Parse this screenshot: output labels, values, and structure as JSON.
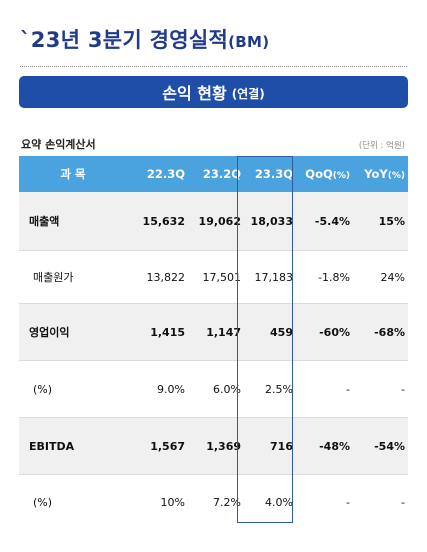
{
  "page": {
    "title": "`23년 3분기 경영실적",
    "title_suffix": "(BM)",
    "banner_title": "손익 현황",
    "banner_suffix": "(연결)",
    "caption": "요약 손익계산서",
    "unit": "(단위 : 억원)"
  },
  "table": {
    "header": {
      "item": "과 목",
      "c1": "22.3Q",
      "c2": "23.2Q",
      "c3": "23.3Q",
      "c4": "QoQ",
      "c4_unit": "(%)",
      "c5": "YoY",
      "c5_unit": "(%)"
    },
    "rows": [
      {
        "label": "매출액",
        "c1": "15,632",
        "c2": "19,062",
        "c3": "18,033",
        "c4": "-5.4%",
        "c5": "15%"
      },
      {
        "label": "매출원가",
        "c1": "13,822",
        "c2": "17,501",
        "c3": "17,183",
        "c4": "-1.8%",
        "c5": "24%"
      },
      {
        "label": "영업이익",
        "c1": "1,415",
        "c2": "1,147",
        "c3": "459",
        "c4": "-60%",
        "c5": "-68%"
      },
      {
        "label": "(%)",
        "c1": "9.0%",
        "c2": "6.0%",
        "c3": "2.5%",
        "c4": "-",
        "c5": "-"
      },
      {
        "label": "EBITDA",
        "c1": "1,567",
        "c2": "1,369",
        "c3": "716",
        "c4": "-48%",
        "c5": "-54%"
      },
      {
        "label": "(%)",
        "c1": "10%",
        "c2": "7.2%",
        "c3": "4.0%",
        "c4": "-",
        "c5": "-"
      }
    ]
  },
  "colors": {
    "title": "#1f3b8a",
    "banner": "#1f4ea8",
    "header": "#4aa3df",
    "highlight_box": "#2e5aa6"
  }
}
